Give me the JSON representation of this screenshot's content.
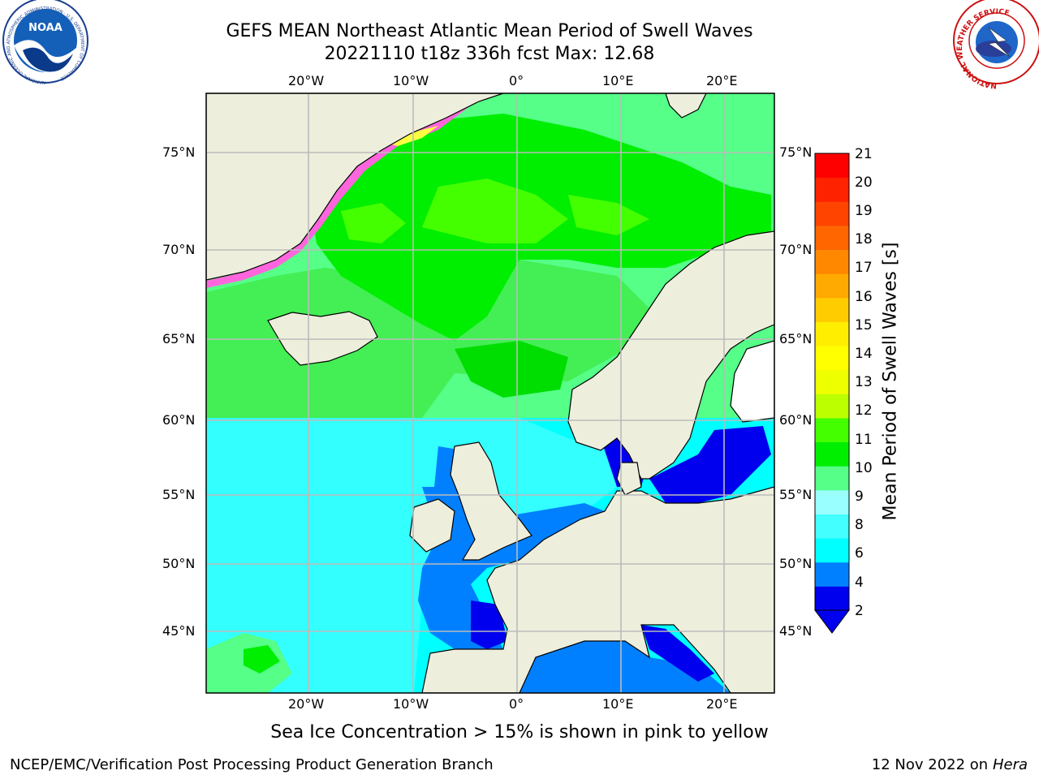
{
  "title": {
    "line1": "GEFS MEAN Northeast Atlantic Mean Period of Swell Waves",
    "line2": "20221110 t18z 336h fcst   Max: 12.68"
  },
  "logos": {
    "left": "NOAA",
    "left_ring_text": "NATIONAL OCEANIC AND ATMOSPHERIC ADMINISTRATION · U.S. DEPARTMENT OF COMMERCE",
    "right_ring_text": "NATIONAL WEATHER SERVICE"
  },
  "map": {
    "lon_labels": [
      "20°W",
      "10°W",
      "0°",
      "10°E",
      "20°E"
    ],
    "lat_labels": [
      "75°N",
      "70°N",
      "65°N",
      "60°N",
      "55°N",
      "50°N",
      "45°N"
    ],
    "regions": [
      "Greenland",
      "Iceland",
      "Scandinavia",
      "British Isles",
      "France",
      "Iberia",
      "Italy",
      "Baltic Sea",
      "North Sea"
    ],
    "colors": {
      "land": "#eeeedd",
      "ocean_background": "#00ffff",
      "grid": "#bbbbbb",
      "ice": "#ff66dd"
    }
  },
  "colorbar": {
    "label": "Mean Period of Swell Waves [s]",
    "ticks": [
      "21",
      "20",
      "19",
      "18",
      "17",
      "16",
      "15",
      "14",
      "13",
      "12",
      "11",
      "10",
      "9",
      "8",
      "6",
      "4",
      "2"
    ],
    "colors": [
      "#0000ee",
      "#0080ff",
      "#00ffff",
      "#44ffff",
      "#99ffff",
      "#55ff88",
      "#00ee00",
      "#44ff00",
      "#bbff00",
      "#eeff00",
      "#ffff00",
      "#ffee00",
      "#ffcc00",
      "#ffaa00",
      "#ff8800",
      "#ff6600",
      "#ff4400",
      "#ff2200",
      "#ff0000"
    ]
  },
  "footer": {
    "note": "Sea Ice Concentration > 15% is shown in pink to yellow",
    "left": "NCEP/EMC/Verification Post Processing Product Generation Branch",
    "right_date": "12 Nov 2022 on",
    "right_host": "Hera"
  }
}
